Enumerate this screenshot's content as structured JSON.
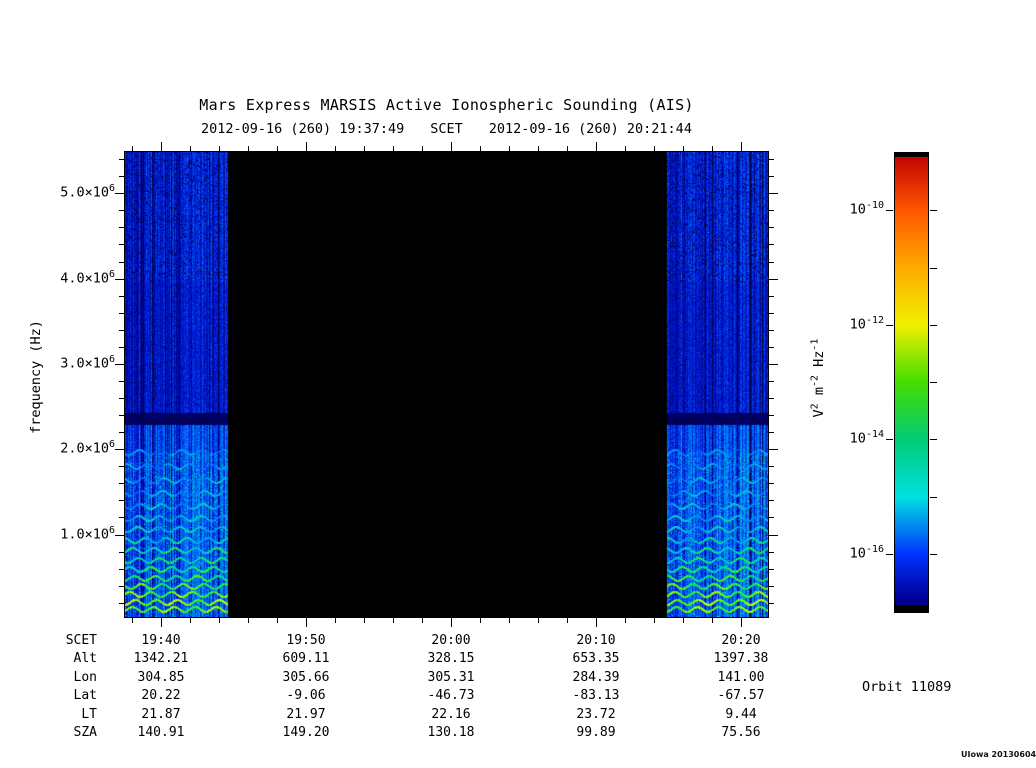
{
  "header": {
    "title": "Mars Express MARSIS Active Ionospheric Sounding (AIS)",
    "start_scet": "2012-09-16 (260) 19:37:49",
    "scet_label": "SCET",
    "end_scet": "2012-09-16 (260) 20:21:44"
  },
  "y_axis": {
    "label": "frequency (Hz)",
    "ticks": [
      {
        "mantissa": "1.0×10",
        "exp": "6",
        "value_mhz": 1.0
      },
      {
        "mantissa": "2.0×10",
        "exp": "6",
        "value_mhz": 2.0
      },
      {
        "mantissa": "3.0×10",
        "exp": "6",
        "value_mhz": 3.0
      },
      {
        "mantissa": "4.0×10",
        "exp": "6",
        "value_mhz": 4.0
      },
      {
        "mantissa": "5.0×10",
        "exp": "6",
        "value_mhz": 5.0
      }
    ]
  },
  "colorbar": {
    "unit_parts": [
      [
        "V",
        "2"
      ],
      [
        " m",
        "-2"
      ],
      [
        " Hz",
        "-1"
      ]
    ],
    "ticks": [
      {
        "base": "10",
        "exp": "-10"
      },
      {
        "base": "10",
        "exp": "-12"
      },
      {
        "base": "10",
        "exp": "-14"
      },
      {
        "base": "10",
        "exp": "-16"
      }
    ],
    "top_exp": -9,
    "bottom_exp": -17
  },
  "table": {
    "rows": [
      {
        "label": "SCET",
        "values": [
          "19:40",
          "19:50",
          "20:00",
          "20:10",
          "20:20"
        ]
      },
      {
        "label": "Alt",
        "values": [
          "1342.21",
          "609.11",
          "328.15",
          "653.35",
          "1397.38"
        ]
      },
      {
        "label": "Lon",
        "values": [
          "304.85",
          "305.66",
          "305.31",
          "284.39",
          "141.00"
        ]
      },
      {
        "label": "Lat",
        "values": [
          "20.22",
          "-9.06",
          "-46.73",
          "-83.13",
          "-67.57"
        ]
      },
      {
        "label": "LT",
        "values": [
          "21.87",
          "21.97",
          "22.16",
          "23.72",
          "9.44"
        ]
      },
      {
        "label": "SZA",
        "values": [
          "140.91",
          "149.20",
          "130.18",
          "99.89",
          "75.56"
        ]
      }
    ]
  },
  "annotations": {
    "orbit": "Orbit 11089",
    "watermark": "UIowa 20130604"
  },
  "chart_data": {
    "type": "heatmap",
    "title": "Mars Express MARSIS Active Ionospheric Sounding (AIS)",
    "xlabel": "SCET",
    "ylabel": "frequency (Hz)",
    "x_range_scet": [
      "2012-09-16 19:37:49",
      "2012-09-16 20:21:44"
    ],
    "x_tick_labels": [
      "19:40",
      "19:50",
      "20:00",
      "20:10",
      "20:20"
    ],
    "x_minor_tick_interval_s": 120,
    "y_range_hz": [
      40000,
      5500000
    ],
    "y_tick_values_hz": [
      1000000,
      2000000,
      3000000,
      4000000,
      5000000
    ],
    "y_tick_labels": [
      "1.0×10^6",
      "2.0×10^6",
      "3.0×10^6",
      "4.0×10^6",
      "5.0×10^6"
    ],
    "z_label": "V^2 m^-2 Hz^-1",
    "z_range": [
      1e-17,
      1e-09
    ],
    "z_tick_values": [
      1e-10,
      1e-12,
      1e-14,
      1e-16
    ],
    "colormap": "rainbow (red=high, dark blue=low)",
    "segments": [
      {
        "name": "active-sounding-pass-1",
        "t_start": "19:37:49",
        "t_end": "19:44:45",
        "appearance": "blue noise with vertical striations, cyan-green below 2.3 MHz, bright green harmonic bands below ~1.2 MHz"
      },
      {
        "name": "no-data-gap",
        "t_start": "19:44:45",
        "t_end": "20:14:50",
        "appearance": "solid black"
      },
      {
        "name": "active-sounding-pass-2",
        "t_start": "20:14:50",
        "t_end": "20:21:44",
        "appearance": "blue noise with vertical striations, cyan-green below 2.3 MHz, bright green harmonic bands below ~1.2 MHz"
      }
    ],
    "features": [
      {
        "name": "absorption-band",
        "freq_hz": 2300000,
        "appearance": "dark horizontal band across both active segments"
      },
      {
        "name": "plasma-harmonic-lines",
        "freq_hz_max": 1300000,
        "appearance": "wavy bright green/yellow-green horizontal lines, brightest near bottom"
      },
      {
        "name": "background-level",
        "approx_value": "1e-16 V^2 m^-2 Hz^-1",
        "appearance": "deep blue"
      }
    ],
    "ephemeris_rows": [
      "SCET",
      "Alt",
      "Lon",
      "Lat",
      "LT",
      "SZA"
    ],
    "orbit": "Orbit 11089"
  }
}
